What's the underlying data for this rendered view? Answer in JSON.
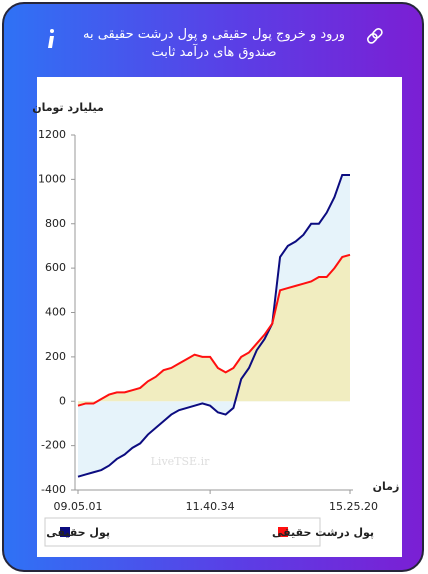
{
  "header": {
    "title": "ورود و خروج پول حقیقی و پول درشت حقیقی به صندوق های درآمد ثابت"
  },
  "chart_data": {
    "type": "line",
    "y_label": "میلیارد تومان",
    "x_label": "زمان",
    "watermark": "LiveTSE.ir",
    "categories": [
      "09.05.01",
      null,
      null,
      null,
      null,
      null,
      null,
      null,
      null,
      null,
      null,
      null,
      null,
      null,
      null,
      null,
      null,
      "11.40.34",
      null,
      null,
      null,
      null,
      null,
      null,
      null,
      null,
      null,
      null,
      null,
      null,
      null,
      null,
      null,
      null,
      null,
      "15.25.20"
    ],
    "series": [
      {
        "name": "پول حقیقی",
        "color": "#0c0c80",
        "fill": "#e6f3fa",
        "values": [
          -340,
          -330,
          -320,
          -310,
          -290,
          -260,
          -240,
          -210,
          -190,
          -150,
          -120,
          -90,
          -60,
          -40,
          -30,
          -20,
          -10,
          -20,
          -50,
          -60,
          -30,
          100,
          150,
          230,
          280,
          350,
          650,
          700,
          720,
          750,
          800,
          800,
          850,
          920,
          1020,
          1020
        ]
      },
      {
        "name": "پول درشت حقیقی",
        "color": "#ff1010",
        "fill": "#f1edc0",
        "values": [
          -20,
          -10,
          -10,
          10,
          30,
          40,
          40,
          50,
          60,
          90,
          110,
          140,
          150,
          170,
          190,
          210,
          200,
          200,
          150,
          130,
          150,
          200,
          220,
          260,
          300,
          350,
          500,
          510,
          520,
          530,
          540,
          560,
          560,
          600,
          650,
          660
        ]
      }
    ],
    "ylim": [
      -400,
      1200
    ],
    "yticks": [
      -400,
      -200,
      0,
      200,
      400,
      600,
      800,
      1000,
      1200
    ]
  }
}
